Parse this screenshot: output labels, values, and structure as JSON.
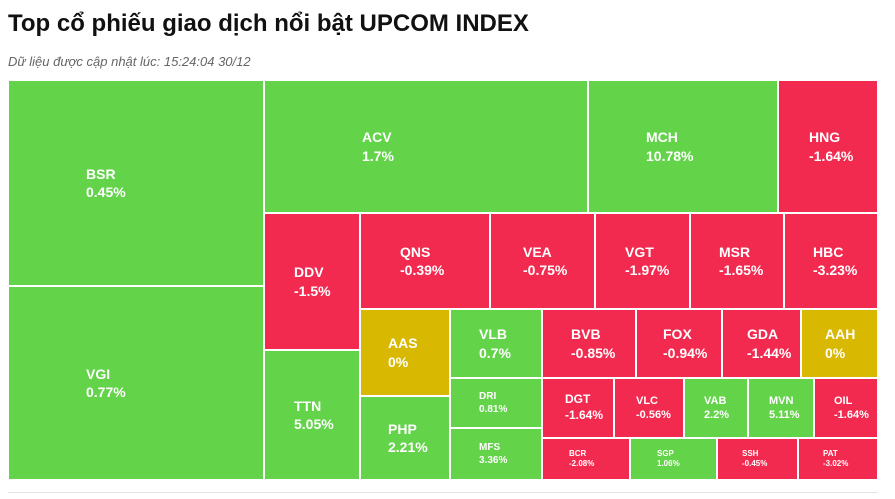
{
  "header": {
    "title": "Top cổ phiếu giao dịch nổi bật UPCOM INDEX",
    "subtitle": "Dữ liệu được cập nhật lúc: 15:24:04 30/12"
  },
  "tiles": [
    {
      "symbol": "BSR",
      "change": "0.45%",
      "color": "#63d34a"
    },
    {
      "symbol": "VGI",
      "change": "0.77%",
      "color": "#63d34a"
    },
    {
      "symbol": "ACV",
      "change": "1.7%",
      "color": "#63d34a"
    },
    {
      "symbol": "MCH",
      "change": "10.78%",
      "color": "#63d34a"
    },
    {
      "symbol": "HNG",
      "change": "-1.64%",
      "color": "#f32a4f"
    },
    {
      "symbol": "DDV",
      "change": "-1.5%",
      "color": "#f32a4f"
    },
    {
      "symbol": "QNS",
      "change": "-0.39%",
      "color": "#f32a4f"
    },
    {
      "symbol": "VEA",
      "change": "-0.75%",
      "color": "#f32a4f"
    },
    {
      "symbol": "VGT",
      "change": "-1.97%",
      "color": "#f32a4f"
    },
    {
      "symbol": "MSR",
      "change": "-1.65%",
      "color": "#f32a4f"
    },
    {
      "symbol": "HBC",
      "change": "-3.23%",
      "color": "#f32a4f"
    },
    {
      "symbol": "TTN",
      "change": "5.05%",
      "color": "#63d34a"
    },
    {
      "symbol": "AAS",
      "change": "0%",
      "color": "#d8b800"
    },
    {
      "symbol": "PHP",
      "change": "2.21%",
      "color": "#63d34a"
    },
    {
      "symbol": "VLB",
      "change": "0.7%",
      "color": "#63d34a"
    },
    {
      "symbol": "DRI",
      "change": "0.81%",
      "color": "#63d34a"
    },
    {
      "symbol": "MFS",
      "change": "3.36%",
      "color": "#63d34a"
    },
    {
      "symbol": "BVB",
      "change": "-0.85%",
      "color": "#f32a4f"
    },
    {
      "symbol": "FOX",
      "change": "-0.94%",
      "color": "#f32a4f"
    },
    {
      "symbol": "GDA",
      "change": "-1.44%",
      "color": "#f32a4f"
    },
    {
      "symbol": "AAH",
      "change": "0%",
      "color": "#d8b800"
    },
    {
      "symbol": "DGT",
      "change": "-1.64%",
      "color": "#f32a4f"
    },
    {
      "symbol": "VLC",
      "change": "-0.56%",
      "color": "#f32a4f"
    },
    {
      "symbol": "VAB",
      "change": "2.2%",
      "color": "#63d34a"
    },
    {
      "symbol": "MVN",
      "change": "5.11%",
      "color": "#63d34a"
    },
    {
      "symbol": "OIL",
      "change": "-1.64%",
      "color": "#f32a4f"
    },
    {
      "symbol": "BCR",
      "change": "-2.08%",
      "color": "#f32a4f"
    },
    {
      "symbol": "SGP",
      "change": "1.06%",
      "color": "#63d34a"
    },
    {
      "symbol": "SSH",
      "change": "-0.45%",
      "color": "#f32a4f"
    },
    {
      "symbol": "PAT",
      "change": "-3.02%",
      "color": "#f32a4f"
    }
  ]
}
